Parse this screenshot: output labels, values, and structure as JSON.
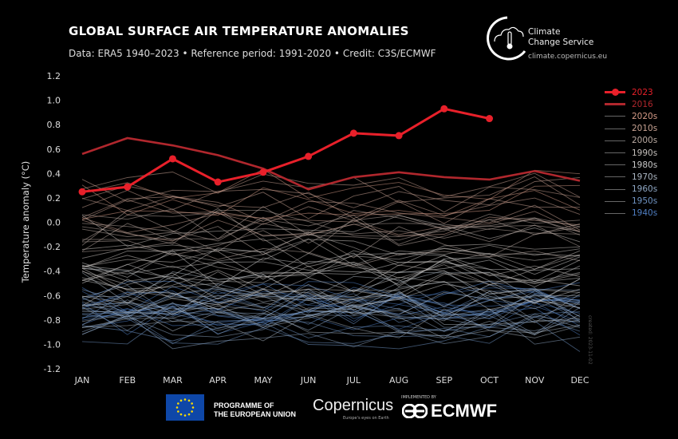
{
  "header": {
    "title": "GLOBAL SURFACE AIR TEMPERATURE ANOMALIES",
    "subtitle": "Data: ERA5 1940–2023 • Reference period: 1991-2020 • Credit: C3S/ECMWF"
  },
  "logo": {
    "line1": "Climate",
    "line2": "Change Service",
    "url": "climate.copernicus.eu"
  },
  "created": "created: 2023-11-02",
  "footer": {
    "eu_line1": "PROGRAMME OF",
    "eu_line2": "THE EUROPEAN UNION",
    "copernicus": "Copernicus",
    "copernicus_sub": "Europe's eyes on Earth",
    "implemented": "IMPLEMENTED BY",
    "ecmwf": "ECMWF"
  },
  "chart_data": {
    "type": "line",
    "ylabel": "Temperature anomaly (°C)",
    "ylim": [
      -1.2,
      1.2
    ],
    "yticks": [
      "1.2",
      "1.0",
      "0.8",
      "0.6",
      "0.4",
      "0.2",
      "0.0",
      "-0.2",
      "-0.4",
      "-0.6",
      "-0.8",
      "-1.0",
      "-1.2"
    ],
    "categories": [
      "JAN",
      "FEB",
      "MAR",
      "APR",
      "MAY",
      "JUN",
      "JUL",
      "AUG",
      "SEP",
      "OCT",
      "NOV",
      "DEC"
    ],
    "highlight_series": [
      {
        "name": "2023",
        "color": "#e8202a",
        "markers": true,
        "values": [
          0.25,
          0.29,
          0.52,
          0.33,
          0.41,
          0.54,
          0.73,
          0.71,
          0.93,
          0.85
        ]
      },
      {
        "name": "2016",
        "color": "#b0272d",
        "markers": false,
        "values": [
          0.56,
          0.69,
          0.63,
          0.55,
          0.44,
          0.27,
          0.37,
          0.41,
          0.37,
          0.35,
          0.42,
          0.34
        ]
      }
    ],
    "decades": [
      {
        "name": "2020s",
        "color": "#d49a86"
      },
      {
        "name": "2010s",
        "color": "#c8a393"
      },
      {
        "name": "2000s",
        "color": "#b9aaa2"
      },
      {
        "name": "1990s",
        "color": "#c4bfbb"
      },
      {
        "name": "1980s",
        "color": "#c8c8c8"
      },
      {
        "name": "1970s",
        "color": "#aab4c0"
      },
      {
        "name": "1960s",
        "color": "#8ea6c2"
      },
      {
        "name": "1950s",
        "color": "#6f93c2"
      },
      {
        "name": "1940s",
        "color": "#4f7ec2"
      }
    ],
    "background_years_annual_mean": {
      "1940": -0.6,
      "1941": -0.62,
      "1942": -0.7,
      "1943": -0.68,
      "1944": -0.6,
      "1945": -0.7,
      "1946": -0.75,
      "1947": -0.72,
      "1948": -0.73,
      "1949": -0.78,
      "1950": -0.85,
      "1951": -0.7,
      "1952": -0.72,
      "1953": -0.65,
      "1954": -0.85,
      "1955": -0.88,
      "1956": -0.92,
      "1957": -0.7,
      "1958": -0.68,
      "1959": -0.72,
      "1960": -0.72,
      "1961": -0.68,
      "1962": -0.7,
      "1963": -0.68,
      "1964": -0.9,
      "1965": -0.85,
      "1966": -0.78,
      "1967": -0.75,
      "1968": -0.78,
      "1969": -0.65,
      "1970": -0.68,
      "1971": -0.8,
      "1972": -0.7,
      "1973": -0.55,
      "1974": -0.8,
      "1975": -0.72,
      "1976": -0.85,
      "1977": -0.55,
      "1978": -0.62,
      "1979": -0.52,
      "1980": -0.45,
      "1981": -0.42,
      "1982": -0.6,
      "1983": -0.42,
      "1984": -0.58,
      "1985": -0.6,
      "1986": -0.5,
      "1987": -0.38,
      "1988": -0.35,
      "1989": -0.45,
      "1990": -0.28,
      "1991": -0.33,
      "1992": -0.48,
      "1993": -0.45,
      "1994": -0.37,
      "1995": -0.25,
      "1996": -0.38,
      "1997": -0.22,
      "1998": -0.05,
      "1999": -0.28,
      "2000": -0.25,
      "2001": -0.12,
      "2002": -0.05,
      "2003": -0.05,
      "2004": -0.12,
      "2005": 0.0,
      "2006": -0.05,
      "2007": -0.02,
      "2008": -0.15,
      "2009": -0.02,
      "2010": 0.08,
      "2011": -0.05,
      "2012": 0.02,
      "2013": 0.05,
      "2014": 0.12,
      "2015": 0.25,
      "2017": 0.28,
      "2018": 0.17,
      "2019": 0.3,
      "2020": 0.32,
      "2021": 0.15,
      "2022": 0.18
    }
  }
}
